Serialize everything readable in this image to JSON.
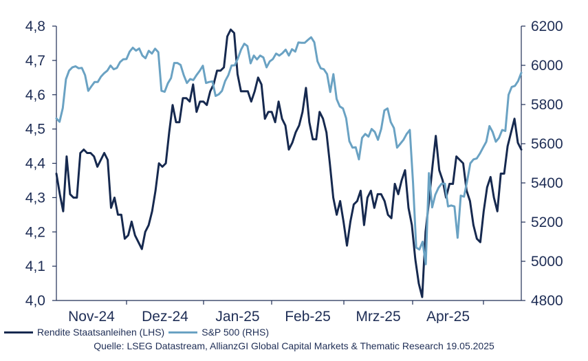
{
  "chart_data": {
    "type": "line",
    "title": "",
    "xlabel": "",
    "ylabel": "",
    "x_tick_labels": [
      "Nov-24",
      "Dez-24",
      "Jan-25",
      "Feb-25",
      "Mrz-25",
      "Apr-25"
    ],
    "y_left": {
      "min": 4.0,
      "max": 4.8,
      "ticks": [
        "4,0",
        "4,1",
        "4,2",
        "4,3",
        "4,4",
        "4,5",
        "4,6",
        "4,7",
        "4,8"
      ]
    },
    "y_right": {
      "min": 4800,
      "max": 6200,
      "ticks": [
        "4800",
        "5000",
        "5200",
        "5400",
        "5600",
        "5800",
        "6000",
        "6200"
      ]
    },
    "grid": false,
    "legend_position": "bottom-left",
    "series": [
      {
        "name": "Rendite Staatsanleihen (LHS)",
        "axis": "left",
        "color": "#16294f",
        "values": [
          4.37,
          4.31,
          4.26,
          4.42,
          4.31,
          4.3,
          4.3,
          4.43,
          4.44,
          4.43,
          4.43,
          4.42,
          4.39,
          4.41,
          4.43,
          4.41,
          4.27,
          4.3,
          4.25,
          4.25,
          4.18,
          4.19,
          4.23,
          4.19,
          4.17,
          4.15,
          4.2,
          4.22,
          4.26,
          4.32,
          4.4,
          4.39,
          4.4,
          4.49,
          4.57,
          4.52,
          4.52,
          4.59,
          4.59,
          4.58,
          4.63,
          4.55,
          4.58,
          4.58,
          4.57,
          4.61,
          4.63,
          4.67,
          4.67,
          4.68,
          4.77,
          4.79,
          4.78,
          4.66,
          4.61,
          4.61,
          4.61,
          4.58,
          4.61,
          4.65,
          4.63,
          4.53,
          4.55,
          4.55,
          4.52,
          4.58,
          4.53,
          4.51,
          4.44,
          4.46,
          4.49,
          4.51,
          4.55,
          4.62,
          4.52,
          4.47,
          4.47,
          4.55,
          4.53,
          4.49,
          4.4,
          4.3,
          4.25,
          4.29,
          4.23,
          4.16,
          4.23,
          4.28,
          4.29,
          4.32,
          4.22,
          4.3,
          4.32,
          4.27,
          4.31,
          4.31,
          4.29,
          4.25,
          4.24,
          4.34,
          4.31,
          4.35,
          4.38,
          4.27,
          4.22,
          4.12,
          4.05,
          4.01,
          4.2,
          4.29,
          4.39,
          4.48,
          4.38,
          4.35,
          4.3,
          4.34,
          4.34,
          4.42,
          4.41,
          4.4,
          4.32,
          4.29,
          4.22,
          4.18,
          4.17,
          4.26,
          4.33,
          4.36,
          4.3,
          4.26,
          4.37,
          4.37,
          4.45,
          4.49,
          4.53,
          4.46,
          4.44
        ]
      },
      {
        "name": "S&P 500 (RHS)",
        "axis": "right",
        "color": "#6aa2c3",
        "values": [
          5729,
          5712,
          5782,
          5929,
          5973,
          5990,
          5995,
          5985,
          5987,
          5950,
          5870,
          5893,
          5915,
          5915,
          5942,
          5960,
          5973,
          5999,
          5980,
          5987,
          6017,
          6031,
          6032,
          6070,
          6090,
          6075,
          6086,
          6050,
          6036,
          6074,
          6060,
          6085,
          6067,
          5870,
          5865,
          5908,
          5935,
          6012,
          6012,
          6002,
          5950,
          5910,
          5930,
          5925,
          5950,
          5972,
          5998,
          5910,
          5915,
          5918,
          5844,
          5852,
          5870,
          5920,
          5950,
          5999,
          6000,
          6035,
          6080,
          6110,
          6098,
          6010,
          6050,
          6030,
          6050,
          6040,
          5990,
          6020,
          6032,
          6060,
          6050,
          6062,
          6080,
          6050,
          6082,
          6070,
          6117,
          6115,
          6115,
          6130,
          6143,
          6118,
          6020,
          5985,
          5980,
          5955,
          5864,
          5955,
          5828,
          5790,
          5780,
          5730,
          5613,
          5580,
          5582,
          5520,
          5630,
          5650,
          5636,
          5675,
          5660,
          5620,
          5675,
          5770,
          5780,
          5710,
          5680,
          5580,
          5600,
          5620,
          5650,
          5670,
          5400,
          5070,
          5060,
          5100,
          4985,
          5450,
          5275,
          5340,
          5375,
          5396,
          5396,
          5280,
          5285,
          5280,
          5120,
          5335,
          5330,
          5410,
          5500,
          5520,
          5525,
          5550,
          5580,
          5610,
          5690,
          5660,
          5610,
          5630,
          5670,
          5665,
          5850,
          5890,
          5895,
          5920,
          5962
        ]
      }
    ]
  },
  "legend": {
    "items": [
      {
        "label": "Rendite Staatsanleihen (LHS)",
        "color": "#16294f"
      },
      {
        "label": "S&P 500 (RHS)",
        "color": "#6aa2c3"
      }
    ]
  },
  "source": "Quelle: LSEG Datastream, AllianzGI Global Capital Markets & Thematic Research 19.05.2025"
}
